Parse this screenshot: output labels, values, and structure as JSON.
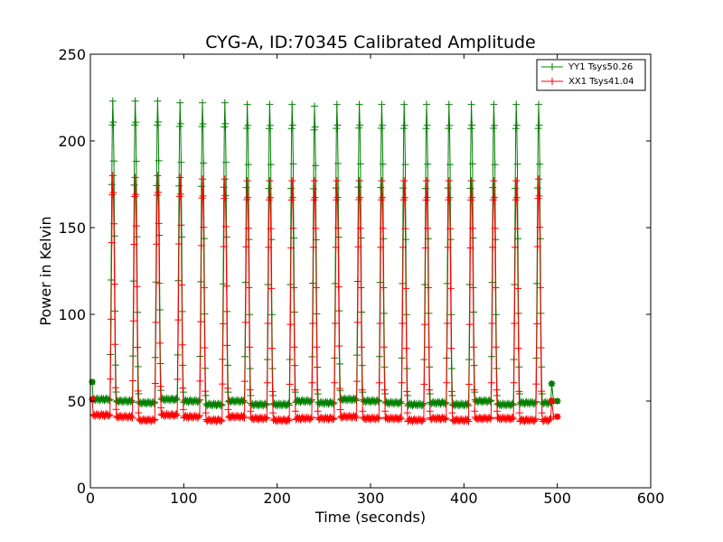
{
  "chart_data": {
    "type": "line",
    "title": "CYG-A, ID:70345 Calibrated Amplitude",
    "xlabel": "Time (seconds)",
    "ylabel": "Power in Kelvin",
    "xlim": [
      0,
      600
    ],
    "ylim": [
      0,
      250
    ],
    "x_ticks": [
      "0",
      "100",
      "200",
      "300",
      "400",
      "500",
      "600"
    ],
    "y_ticks": [
      "0",
      "50",
      "100",
      "150",
      "200",
      "250"
    ],
    "grid": false,
    "legend_position": "top-right",
    "colors": {
      "YY1": "#008000",
      "XX1": "#ff0000",
      "frame": "#000000"
    },
    "series": [
      {
        "name": "YY1 Tsys50.26",
        "color": "#008000",
        "baseline": [
          51,
          50,
          49,
          51,
          50,
          48,
          50,
          48,
          48,
          50,
          49,
          51,
          50,
          49,
          48,
          49,
          48,
          50,
          48,
          49,
          49
        ],
        "peaks": [
          {
            "t": 24,
            "v": 223
          },
          {
            "t": 48,
            "v": 223
          },
          {
            "t": 72,
            "v": 223
          },
          {
            "t": 96,
            "v": 222
          },
          {
            "t": 120,
            "v": 222
          },
          {
            "t": 144,
            "v": 222
          },
          {
            "t": 168,
            "v": 221
          },
          {
            "t": 192,
            "v": 221
          },
          {
            "t": 216,
            "v": 221
          },
          {
            "t": 240,
            "v": 220
          },
          {
            "t": 264,
            "v": 221
          },
          {
            "t": 288,
            "v": 221
          },
          {
            "t": 312,
            "v": 221
          },
          {
            "t": 336,
            "v": 221
          },
          {
            "t": 360,
            "v": 221
          },
          {
            "t": 384,
            "v": 221
          },
          {
            "t": 408,
            "v": 221
          },
          {
            "t": 432,
            "v": 221
          },
          {
            "t": 456,
            "v": 221
          },
          {
            "t": 480,
            "v": 221
          }
        ],
        "start": {
          "t": 2,
          "v": 61
        },
        "end": [
          {
            "t": 493,
            "v": 49
          },
          {
            "t": 494,
            "v": 60
          },
          {
            "t": 496,
            "v": 50
          },
          {
            "t": 500,
            "v": 50
          }
        ]
      },
      {
        "name": "XX1 Tsys41.04",
        "color": "#ff0000",
        "baseline": [
          42,
          41,
          39,
          42,
          41,
          39,
          41,
          40,
          39,
          40,
          40,
          41,
          40,
          40,
          39,
          40,
          39,
          40,
          40,
          39,
          39
        ],
        "peaks": [
          {
            "t": 24,
            "v": 180
          },
          {
            "t": 48,
            "v": 179
          },
          {
            "t": 72,
            "v": 180
          },
          {
            "t": 96,
            "v": 179
          },
          {
            "t": 120,
            "v": 178
          },
          {
            "t": 144,
            "v": 178
          },
          {
            "t": 168,
            "v": 177
          },
          {
            "t": 192,
            "v": 177
          },
          {
            "t": 216,
            "v": 177
          },
          {
            "t": 240,
            "v": 177
          },
          {
            "t": 264,
            "v": 177
          },
          {
            "t": 288,
            "v": 177
          },
          {
            "t": 312,
            "v": 177
          },
          {
            "t": 336,
            "v": 177
          },
          {
            "t": 360,
            "v": 177
          },
          {
            "t": 384,
            "v": 177
          },
          {
            "t": 408,
            "v": 177
          },
          {
            "t": 432,
            "v": 177
          },
          {
            "t": 456,
            "v": 177
          },
          {
            "t": 480,
            "v": 178
          }
        ],
        "start": {
          "t": 2,
          "v": 51
        },
        "end": [
          {
            "t": 493,
            "v": 40
          },
          {
            "t": 494,
            "v": 50
          },
          {
            "t": 496,
            "v": 41
          },
          {
            "t": 500,
            "v": 41
          }
        ]
      }
    ]
  }
}
